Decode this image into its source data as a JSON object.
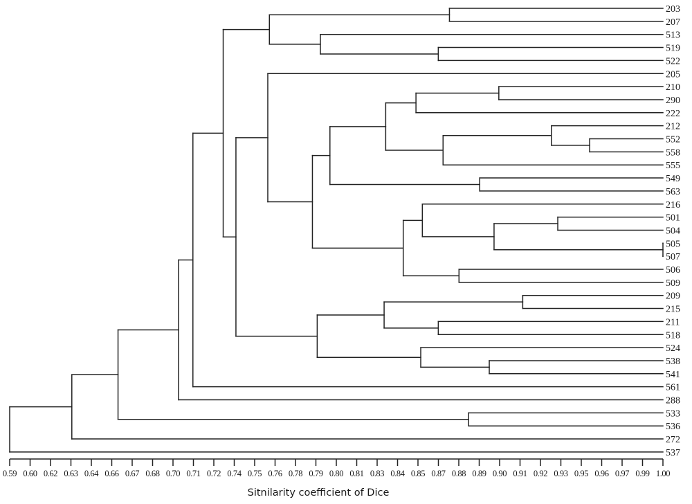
{
  "chart_data": {
    "type": "dendrogram",
    "title": "",
    "xlabel": "Sitnilarity coefficient of Dice",
    "ylabel": "",
    "xlim": [
      0.59,
      1.0
    ],
    "grid": false,
    "line_color": "#222222",
    "tick_labels": [
      "0.59",
      "0.60",
      "0.62",
      "0.63",
      "0.64",
      "0.66",
      "0.67",
      "0.68",
      "0.70",
      "0.71",
      "0.72",
      "0.74",
      "0.75",
      "0.76",
      "0.78",
      "0.79",
      "0.80",
      "0.81",
      "0.83",
      "0.84",
      "0.85",
      "0.87",
      "0.88",
      "0.89",
      "0.90",
      "0.91",
      "0.92",
      "0.93",
      "0.95",
      "0.96",
      "0.97",
      "0.99",
      "1.00"
    ],
    "leaves": [
      "203",
      "207",
      "513",
      "519",
      "522",
      "205",
      "210",
      "290",
      "222",
      "212",
      "552",
      "558",
      "555",
      "549",
      "563",
      "216",
      "501",
      "504",
      "505",
      "507",
      "506",
      "509",
      "209",
      "215",
      "211",
      "518",
      "524",
      "538",
      "541",
      "561",
      "288",
      "533",
      "536",
      "272",
      "537"
    ],
    "tree": {
      "sim": 0.59,
      "children": [
        {
          "sim": 0.629,
          "children": [
            {
              "sim": 0.658,
              "children": [
                {
                  "sim": 0.696,
                  "children": [
                    {
                      "sim": 0.705,
                      "children": [
                        {
                          "sim": 0.724,
                          "children": [
                            {
                              "sim": 0.753,
                              "children": [
                                {
                                  "sim": 0.866,
                                  "children": [
                                    "203",
                                    "207"
                                  ]
                                },
                                {
                                  "sim": 0.785,
                                  "children": [
                                    "513",
                                    {
                                      "sim": 0.859,
                                      "children": [
                                        "519",
                                        "522"
                                      ]
                                    }
                                  ]
                                }
                              ]
                            },
                            {
                              "sim": 0.732,
                              "children": [
                                {
                                  "sim": 0.752,
                                  "children": [
                                    "205",
                                    {
                                      "sim": 0.78,
                                      "children": [
                                        {
                                          "sim": 0.791,
                                          "children": [
                                            {
                                              "sim": 0.826,
                                              "children": [
                                                {
                                                  "sim": 0.845,
                                                  "children": [
                                                    {
                                                      "sim": 0.897,
                                                      "children": [
                                                        "210",
                                                        "290"
                                                      ]
                                                    },
                                                    "222"
                                                  ]
                                                },
                                                {
                                                  "sim": 0.862,
                                                  "children": [
                                                    {
                                                      "sim": 0.93,
                                                      "children": [
                                                        "212",
                                                        {
                                                          "sim": 0.954,
                                                          "children": [
                                                            "552",
                                                            "558"
                                                          ]
                                                        }
                                                      ]
                                                    },
                                                    "555"
                                                  ]
                                                }
                                              ]
                                            },
                                            {
                                              "sim": 0.885,
                                              "children": [
                                                "549",
                                                "563"
                                              ]
                                            }
                                          ]
                                        },
                                        {
                                          "sim": 0.837,
                                          "children": [
                                            {
                                              "sim": 0.849,
                                              "children": [
                                                "216",
                                                {
                                                  "sim": 0.894,
                                                  "children": [
                                                    {
                                                      "sim": 0.934,
                                                      "children": [
                                                        "501",
                                                        "504"
                                                      ]
                                                    },
                                                    {
                                                      "sim": 1.0,
                                                      "children": [
                                                        "505",
                                                        "507"
                                                      ]
                                                    }
                                                  ]
                                                }
                                              ]
                                            },
                                            {
                                              "sim": 0.872,
                                              "children": [
                                                "506",
                                                "509"
                                              ]
                                            }
                                          ]
                                        }
                                      ]
                                    }
                                  ]
                                },
                                {
                                  "sim": 0.783,
                                  "children": [
                                    {
                                      "sim": 0.825,
                                      "children": [
                                        {
                                          "sim": 0.912,
                                          "children": [
                                            "209",
                                            "215"
                                          ]
                                        },
                                        {
                                          "sim": 0.859,
                                          "children": [
                                            "211",
                                            "518"
                                          ]
                                        }
                                      ]
                                    },
                                    {
                                      "sim": 0.848,
                                      "children": [
                                        "524",
                                        {
                                          "sim": 0.891,
                                          "children": [
                                            "538",
                                            "541"
                                          ]
                                        }
                                      ]
                                    }
                                  ]
                                }
                              ]
                            }
                          ]
                        },
                        "561"
                      ]
                    },
                    "288"
                  ]
                },
                {
                  "sim": 0.878,
                  "children": [
                    "533",
                    "536"
                  ]
                }
              ]
            },
            "272"
          ]
        },
        "537"
      ]
    }
  }
}
